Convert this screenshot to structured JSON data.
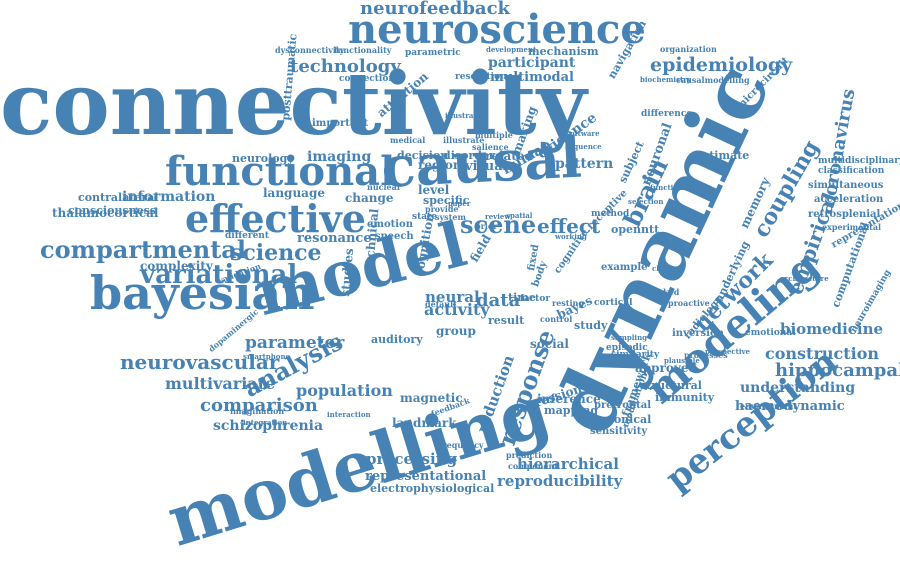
{
  "word_color": "#4682b4",
  "background_color": "#ffffff",
  "words": [
    {
      "text": "connectivity"
    },
    {
      "text": "modelling"
    },
    {
      "text": "dynamic"
    },
    {
      "text": "model"
    },
    {
      "text": "causal"
    },
    {
      "text": "bayesian"
    },
    {
      "text": "neuroscience"
    },
    {
      "text": "functional"
    },
    {
      "text": "effective"
    },
    {
      "text": "modeling"
    },
    {
      "text": "perception"
    },
    {
      "text": "neurofeedback"
    },
    {
      "text": "technology"
    },
    {
      "text": "epidemiology"
    },
    {
      "text": "compartmental"
    },
    {
      "text": "variational"
    },
    {
      "text": "science"
    },
    {
      "text": "analysis"
    },
    {
      "text": "neurovascular"
    },
    {
      "text": "multivariate"
    },
    {
      "text": "comparison"
    },
    {
      "text": "schizophrenia"
    },
    {
      "text": "population"
    },
    {
      "text": "parameter"
    },
    {
      "text": "information"
    },
    {
      "text": "resonance"
    },
    {
      "text": "complexity"
    },
    {
      "text": "scene"
    },
    {
      "text": "effect"
    },
    {
      "text": "brain"
    },
    {
      "text": "network"
    },
    {
      "text": "coupling"
    },
    {
      "text": "empirical"
    },
    {
      "text": "coronavirus"
    },
    {
      "text": "hippocampal"
    },
    {
      "text": "construction"
    },
    {
      "text": "biomedicine"
    },
    {
      "text": "understanding"
    },
    {
      "text": "haemodynamic"
    },
    {
      "text": "reproducibility"
    },
    {
      "text": "hierarchical"
    },
    {
      "text": "processing"
    },
    {
      "text": "representational"
    },
    {
      "text": "electrophysiological"
    },
    {
      "text": "response"
    },
    {
      "text": "reduction"
    },
    {
      "text": "data"
    },
    {
      "text": "activity"
    },
    {
      "text": "neural"
    },
    {
      "text": "human"
    },
    {
      "text": "evidence"
    },
    {
      "text": "pattern"
    },
    {
      "text": "imaging"
    },
    {
      "text": "neurology"
    },
    {
      "text": "participant"
    },
    {
      "text": "multimodal"
    },
    {
      "text": "attention"
    },
    {
      "text": "thalamocortical"
    },
    {
      "text": "contralateral"
    },
    {
      "text": "consciousness"
    },
    {
      "text": "language"
    },
    {
      "text": "change"
    },
    {
      "text": "decision"
    },
    {
      "text": "disorder"
    },
    {
      "text": "region"
    },
    {
      "text": "visual"
    },
    {
      "text": "related"
    },
    {
      "text": "level"
    },
    {
      "text": "specific"
    },
    {
      "text": "emotion"
    },
    {
      "text": "speech"
    },
    {
      "text": "magnetic"
    },
    {
      "text": "landmark"
    },
    {
      "text": "inference"
    },
    {
      "text": "mapping"
    },
    {
      "text": "canonical"
    },
    {
      "text": "sensitivity"
    },
    {
      "text": "prefrontal"
    },
    {
      "text": "immunity"
    },
    {
      "text": "framework"
    },
    {
      "text": "structural"
    },
    {
      "text": "approved"
    },
    {
      "text": "memory"
    },
    {
      "text": "underlying"
    },
    {
      "text": "subject"
    },
    {
      "text": "neuronal"
    },
    {
      "text": "making"
    },
    {
      "text": "social"
    },
    {
      "text": "study"
    },
    {
      "text": "group"
    },
    {
      "text": "result"
    },
    {
      "text": "auditory"
    },
    {
      "text": "estimate"
    },
    {
      "text": "representation"
    },
    {
      "text": "computational"
    },
    {
      "text": "neuroimaging"
    },
    {
      "text": "retrosplenial"
    },
    {
      "text": "acceleration"
    },
    {
      "text": "simultaneous"
    },
    {
      "text": "classification"
    },
    {
      "text": "multidisciplinary"
    },
    {
      "text": "mechanism"
    },
    {
      "text": "resolution"
    },
    {
      "text": "navigation"
    },
    {
      "text": "parametric"
    },
    {
      "text": "connection"
    },
    {
      "text": "dysconnectivity"
    },
    {
      "text": "functionality"
    },
    {
      "text": "development"
    },
    {
      "text": "organization"
    },
    {
      "text": "biochemistry"
    },
    {
      "text": "causalmodelling"
    },
    {
      "text": "posttraumatic"
    },
    {
      "text": "important"
    },
    {
      "text": "microcircuit"
    },
    {
      "text": "difference"
    },
    {
      "text": "multiple"
    },
    {
      "text": "salience"
    },
    {
      "text": "time"
    },
    {
      "text": "bayes"
    },
    {
      "text": "openntt"
    },
    {
      "text": "example"
    },
    {
      "text": "method"
    },
    {
      "text": "inversion"
    },
    {
      "text": "emotional"
    },
    {
      "text": "radiology"
    },
    {
      "text": "episodic"
    },
    {
      "text": "similarity"
    },
    {
      "text": "modulation"
    },
    {
      "text": "depression"
    },
    {
      "text": "factor"
    },
    {
      "text": "cortical"
    },
    {
      "text": "resting"
    },
    {
      "text": "cognitive"
    },
    {
      "text": "state"
    },
    {
      "text": "validation"
    },
    {
      "text": "different"
    },
    {
      "text": "dopaminergic"
    },
    {
      "text": "smartphone"
    },
    {
      "text": "imagination"
    },
    {
      "text": "integration"
    },
    {
      "text": "interaction"
    },
    {
      "text": "environment"
    },
    {
      "text": "processes"
    },
    {
      "text": "perspective"
    },
    {
      "text": "feedback"
    },
    {
      "text": "prediction"
    },
    {
      "text": "component"
    },
    {
      "text": "frequency"
    },
    {
      "text": "medical"
    },
    {
      "text": "illustrate"
    },
    {
      "text": "illustrate"
    },
    {
      "text": "system"
    },
    {
      "text": "review"
    },
    {
      "text": "provide"
    },
    {
      "text": "function"
    },
    {
      "text": "selection"
    },
    {
      "text": "evoked"
    },
    {
      "text": "proactive"
    },
    {
      "text": "clinical"
    },
    {
      "text": "experimental"
    },
    {
      "text": "architecture"
    },
    {
      "text": "plausible"
    },
    {
      "text": "studies"
    },
    {
      "text": "technical"
    },
    {
      "text": "cognition"
    },
    {
      "text": "field"
    },
    {
      "text": "fixed"
    },
    {
      "text": "body"
    },
    {
      "text": "receptive"
    },
    {
      "text": "spatial"
    },
    {
      "text": "control"
    },
    {
      "text": "sampling"
    },
    {
      "text": "working"
    },
    {
      "text": "default"
    },
    {
      "text": "paper"
    },
    {
      "text": "nuclear"
    },
    {
      "text": "software"
    },
    {
      "text": "sequence"
    },
    {
      "text": "prior"
    }
  ]
}
